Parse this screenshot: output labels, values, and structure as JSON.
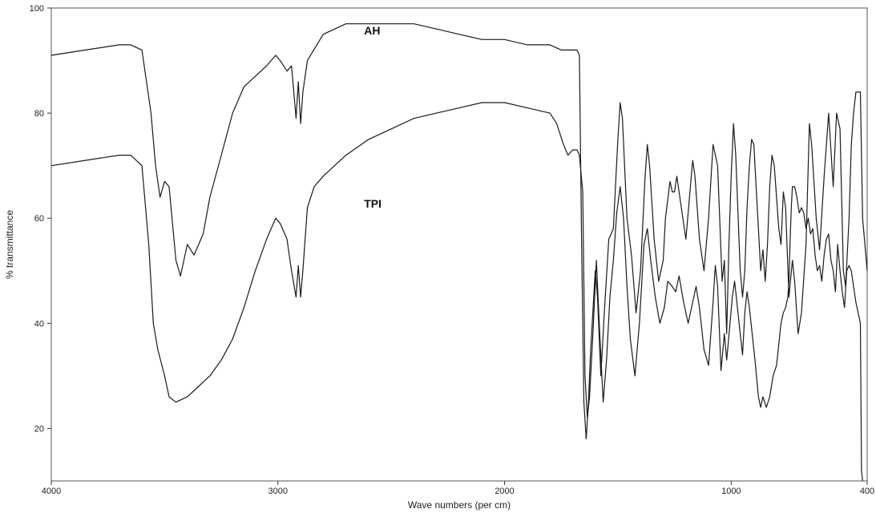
{
  "chart_data": {
    "type": "line",
    "title": "",
    "xlabel": "Wave numbers (per cm)",
    "ylabel": "% transmittance",
    "xlim": [
      4000,
      400
    ],
    "ylim": [
      10,
      100
    ],
    "x_ticks": [
      4000,
      3000,
      2000,
      1000,
      400
    ],
    "y_ticks": [
      20,
      40,
      60,
      80,
      100
    ],
    "grid": false,
    "legend": "inline labels",
    "series": [
      {
        "name": "AH",
        "points": [
          [
            4000,
            91
          ],
          [
            3850,
            92
          ],
          [
            3700,
            93
          ],
          [
            3650,
            93
          ],
          [
            3600,
            92
          ],
          [
            3560,
            80
          ],
          [
            3540,
            70
          ],
          [
            3520,
            64
          ],
          [
            3500,
            67
          ],
          [
            3480,
            66
          ],
          [
            3450,
            52
          ],
          [
            3430,
            49
          ],
          [
            3400,
            55
          ],
          [
            3370,
            53
          ],
          [
            3330,
            57
          ],
          [
            3300,
            64
          ],
          [
            3250,
            72
          ],
          [
            3200,
            80
          ],
          [
            3150,
            85
          ],
          [
            3100,
            87
          ],
          [
            3050,
            89
          ],
          [
            3010,
            91
          ],
          [
            2990,
            90
          ],
          [
            2960,
            88
          ],
          [
            2940,
            89
          ],
          [
            2930,
            84
          ],
          [
            2920,
            79
          ],
          [
            2910,
            86
          ],
          [
            2900,
            78
          ],
          [
            2890,
            84
          ],
          [
            2870,
            90
          ],
          [
            2800,
            95
          ],
          [
            2700,
            97
          ],
          [
            2600,
            97
          ],
          [
            2500,
            97
          ],
          [
            2400,
            97
          ],
          [
            2300,
            96
          ],
          [
            2200,
            95
          ],
          [
            2100,
            94
          ],
          [
            2000,
            94
          ],
          [
            1900,
            93
          ],
          [
            1800,
            93
          ],
          [
            1750,
            92
          ],
          [
            1700,
            92
          ],
          [
            1680,
            92
          ],
          [
            1670,
            91
          ],
          [
            1660,
            55
          ],
          [
            1650,
            25
          ],
          [
            1640,
            18
          ],
          [
            1630,
            25
          ],
          [
            1620,
            35
          ],
          [
            1600,
            50
          ],
          [
            1590,
            45
          ],
          [
            1575,
            30
          ],
          [
            1560,
            42
          ],
          [
            1540,
            56
          ],
          [
            1520,
            58
          ],
          [
            1500,
            75
          ],
          [
            1490,
            82
          ],
          [
            1480,
            79
          ],
          [
            1460,
            60
          ],
          [
            1440,
            53
          ],
          [
            1420,
            42
          ],
          [
            1400,
            50
          ],
          [
            1380,
            68
          ],
          [
            1370,
            74
          ],
          [
            1360,
            70
          ],
          [
            1340,
            56
          ],
          [
            1320,
            48
          ],
          [
            1300,
            52
          ],
          [
            1290,
            60
          ],
          [
            1270,
            67
          ],
          [
            1260,
            65
          ],
          [
            1250,
            65
          ],
          [
            1240,
            68
          ],
          [
            1220,
            62
          ],
          [
            1200,
            56
          ],
          [
            1180,
            66
          ],
          [
            1170,
            71
          ],
          [
            1160,
            68
          ],
          [
            1140,
            56
          ],
          [
            1120,
            50
          ],
          [
            1100,
            60
          ],
          [
            1080,
            74
          ],
          [
            1060,
            70
          ],
          [
            1040,
            48
          ],
          [
            1030,
            52
          ],
          [
            1020,
            38
          ],
          [
            1010,
            55
          ],
          [
            1000,
            68
          ],
          [
            990,
            78
          ],
          [
            980,
            72
          ],
          [
            960,
            50
          ],
          [
            950,
            45
          ],
          [
            940,
            50
          ],
          [
            930,
            62
          ],
          [
            920,
            70
          ],
          [
            910,
            75
          ],
          [
            900,
            74
          ],
          [
            895,
            70
          ],
          [
            880,
            58
          ],
          [
            870,
            50
          ],
          [
            860,
            54
          ],
          [
            850,
            48
          ],
          [
            840,
            55
          ],
          [
            830,
            66
          ],
          [
            820,
            72
          ],
          [
            810,
            70
          ],
          [
            790,
            58
          ],
          [
            780,
            55
          ],
          [
            770,
            65
          ],
          [
            760,
            62
          ],
          [
            745,
            45
          ],
          [
            730,
            52
          ],
          [
            720,
            48
          ],
          [
            705,
            38
          ],
          [
            690,
            42
          ],
          [
            670,
            55
          ],
          [
            655,
            78
          ],
          [
            645,
            74
          ],
          [
            625,
            60
          ],
          [
            610,
            54
          ],
          [
            590,
            68
          ],
          [
            570,
            80
          ],
          [
            550,
            66
          ],
          [
            535,
            80
          ],
          [
            520,
            77
          ],
          [
            505,
            50
          ],
          [
            495,
            47
          ],
          [
            480,
            60
          ],
          [
            470,
            74
          ],
          [
            460,
            80
          ],
          [
            450,
            84
          ],
          [
            430,
            84
          ],
          [
            420,
            60
          ],
          [
            400,
            50
          ]
        ]
      },
      {
        "name": "TPI",
        "points": [
          [
            4000,
            70
          ],
          [
            3850,
            71
          ],
          [
            3700,
            72
          ],
          [
            3650,
            72
          ],
          [
            3600,
            70
          ],
          [
            3570,
            55
          ],
          [
            3550,
            40
          ],
          [
            3530,
            35
          ],
          [
            3500,
            30
          ],
          [
            3480,
            26
          ],
          [
            3450,
            25
          ],
          [
            3400,
            26
          ],
          [
            3350,
            28
          ],
          [
            3300,
            30
          ],
          [
            3250,
            33
          ],
          [
            3200,
            37
          ],
          [
            3150,
            43
          ],
          [
            3100,
            50
          ],
          [
            3050,
            56
          ],
          [
            3010,
            60
          ],
          [
            2990,
            59
          ],
          [
            2960,
            56
          ],
          [
            2940,
            50
          ],
          [
            2920,
            45
          ],
          [
            2910,
            51
          ],
          [
            2900,
            45
          ],
          [
            2890,
            50
          ],
          [
            2870,
            62
          ],
          [
            2840,
            66
          ],
          [
            2800,
            68
          ],
          [
            2700,
            72
          ],
          [
            2600,
            75
          ],
          [
            2500,
            77
          ],
          [
            2400,
            79
          ],
          [
            2300,
            80
          ],
          [
            2200,
            81
          ],
          [
            2100,
            82
          ],
          [
            2000,
            82
          ],
          [
            1900,
            81
          ],
          [
            1800,
            80
          ],
          [
            1770,
            78
          ],
          [
            1740,
            74
          ],
          [
            1720,
            72
          ],
          [
            1700,
            73
          ],
          [
            1680,
            73
          ],
          [
            1670,
            72
          ],
          [
            1655,
            65
          ],
          [
            1645,
            30
          ],
          [
            1635,
            22
          ],
          [
            1625,
            26
          ],
          [
            1610,
            38
          ],
          [
            1595,
            52
          ],
          [
            1580,
            38
          ],
          [
            1565,
            25
          ],
          [
            1550,
            33
          ],
          [
            1535,
            45
          ],
          [
            1520,
            52
          ],
          [
            1505,
            61
          ],
          [
            1490,
            66
          ],
          [
            1475,
            60
          ],
          [
            1460,
            47
          ],
          [
            1445,
            37
          ],
          [
            1425,
            30
          ],
          [
            1405,
            40
          ],
          [
            1385,
            55
          ],
          [
            1370,
            58
          ],
          [
            1355,
            52
          ],
          [
            1335,
            45
          ],
          [
            1315,
            40
          ],
          [
            1295,
            43
          ],
          [
            1280,
            48
          ],
          [
            1260,
            47
          ],
          [
            1245,
            46
          ],
          [
            1230,
            49
          ],
          [
            1210,
            44
          ],
          [
            1190,
            40
          ],
          [
            1170,
            44
          ],
          [
            1155,
            47
          ],
          [
            1140,
            43
          ],
          [
            1120,
            35
          ],
          [
            1100,
            32
          ],
          [
            1080,
            44
          ],
          [
            1070,
            51
          ],
          [
            1060,
            47
          ],
          [
            1045,
            31
          ],
          [
            1030,
            38
          ],
          [
            1020,
            33
          ],
          [
            1005,
            40
          ],
          [
            995,
            45
          ],
          [
            985,
            48
          ],
          [
            975,
            44
          ],
          [
            960,
            38
          ],
          [
            950,
            34
          ],
          [
            940,
            42
          ],
          [
            930,
            46
          ],
          [
            920,
            43
          ],
          [
            905,
            37
          ],
          [
            895,
            33
          ],
          [
            880,
            26
          ],
          [
            870,
            24
          ],
          [
            860,
            26
          ],
          [
            845,
            24
          ],
          [
            830,
            26
          ],
          [
            815,
            30
          ],
          [
            800,
            32
          ],
          [
            790,
            36
          ],
          [
            780,
            40
          ],
          [
            770,
            42
          ],
          [
            760,
            43
          ],
          [
            750,
            45
          ],
          [
            745,
            48
          ],
          [
            740,
            56
          ],
          [
            735,
            62
          ],
          [
            730,
            66
          ],
          [
            720,
            66
          ],
          [
            710,
            64
          ],
          [
            700,
            61
          ],
          [
            690,
            62
          ],
          [
            680,
            61
          ],
          [
            670,
            58
          ],
          [
            660,
            60
          ],
          [
            650,
            57
          ],
          [
            640,
            58
          ],
          [
            630,
            53
          ],
          [
            620,
            50
          ],
          [
            610,
            51
          ],
          [
            600,
            48
          ],
          [
            590,
            53
          ],
          [
            580,
            56
          ],
          [
            570,
            57
          ],
          [
            560,
            52
          ],
          [
            550,
            50
          ],
          [
            540,
            46
          ],
          [
            530,
            55
          ],
          [
            520,
            50
          ],
          [
            510,
            46
          ],
          [
            500,
            43
          ],
          [
            490,
            50
          ],
          [
            480,
            51
          ],
          [
            470,
            50
          ],
          [
            460,
            47
          ],
          [
            450,
            44
          ],
          [
            440,
            42
          ],
          [
            430,
            40
          ],
          [
            425,
            12
          ],
          [
            420,
            10
          ]
        ]
      }
    ],
    "annotations": [
      {
        "text": "AH",
        "x": 2620,
        "y": 95
      },
      {
        "text": "TPI",
        "x": 2620,
        "y": 62
      }
    ]
  }
}
